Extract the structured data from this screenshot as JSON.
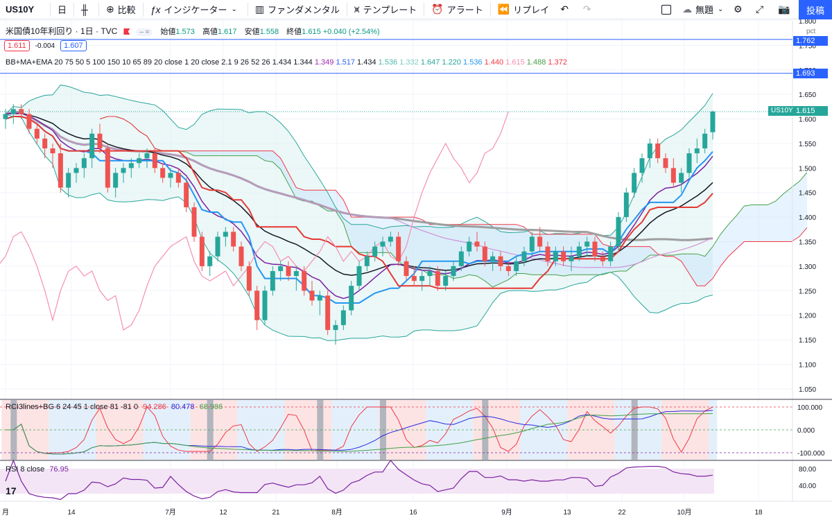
{
  "toolbar": {
    "symbol": "US10Y",
    "interval": "日",
    "compare": "比較",
    "indicators": "インジケーター",
    "fundamentals": "ファンダメンタル",
    "templates": "テンプレート",
    "alert": "アラート",
    "replay": "リプレイ",
    "layout_name": "無題",
    "publish": "投稿"
  },
  "legend": {
    "title": "米国債10年利回り · 1日 · TVC",
    "open_label": "始値",
    "open": "1.573",
    "high_label": "高値",
    "high": "1.617",
    "low_label": "安値",
    "low": "1.558",
    "close_label": "終値",
    "close": "1.615",
    "change": "+0.040 (+2.54%)",
    "bid": "1.611",
    "spread": "-0.004",
    "ask": "1.607",
    "indicator": "BB+MA+EMA 20 75 50 5 100 150 10 65 89 20 close 1 20 close 2.1 9 26 52 26",
    "values": [
      {
        "v": "1.434",
        "color": "#131722"
      },
      {
        "v": "1.344",
        "color": "#131722"
      },
      {
        "v": "1.349",
        "color": "#9c27b0"
      },
      {
        "v": "1.517",
        "color": "#2962ff"
      },
      {
        "v": "1.434",
        "color": "#131722"
      },
      {
        "v": "1.536",
        "color": "#4db6ac"
      },
      {
        "v": "1.332",
        "color": "#80cbc4"
      },
      {
        "v": "1.647",
        "color": "#26a69a"
      },
      {
        "v": "1.220",
        "color": "#26a69a"
      },
      {
        "v": "1.536",
        "color": "#2196f3"
      },
      {
        "v": "1.440",
        "color": "#f23645"
      },
      {
        "v": "1.615",
        "color": "#f48fb1"
      },
      {
        "v": "1.488",
        "color": "#43a047"
      },
      {
        "v": "1.372",
        "color": "#f23645"
      }
    ]
  },
  "rci_legend": {
    "label": "RCI3lines+BG 6 24 45 1 close 81 -81 0",
    "v1": "94.286",
    "v2": "80.478",
    "v3": "68.986"
  },
  "rsi_legend": {
    "label": "RSI 8 close",
    "value": "76.95"
  },
  "price_labels": {
    "high_line": "1.762",
    "low_line": "1.693",
    "last": "1.615",
    "symbol_tag": "US10Y",
    "unit": "pct"
  },
  "price_axis_ticks": [
    "1.800",
    "1.750",
    "1.700",
    "1.650",
    "1.600",
    "1.550",
    "1.500",
    "1.450",
    "1.400",
    "1.350",
    "1.300",
    "1.250",
    "1.200",
    "1.150",
    "1.100",
    "1.050"
  ],
  "rci_axis_ticks": [
    "100.000",
    "0.000",
    "-100.000"
  ],
  "rsi_axis_ticks": [
    "80.00",
    "40.00"
  ],
  "time_axis_ticks": [
    "月",
    "14",
    "7月",
    "12",
    "21",
    "8月",
    "16",
    "9月",
    "13",
    "22",
    "10月",
    "18"
  ],
  "colors": {
    "up": "#26a69a",
    "down": "#ef5350",
    "accent": "#2962ff"
  },
  "chart_data": {
    "type": "candlestick",
    "ylim": [
      1.03,
      1.8
    ],
    "grid": true,
    "candles": [
      [
        1.6,
        1.62,
        1.58,
        1.61
      ],
      [
        1.61,
        1.63,
        1.59,
        1.62
      ],
      [
        1.62,
        1.63,
        1.6,
        1.61
      ],
      [
        1.61,
        1.62,
        1.57,
        1.58
      ],
      [
        1.58,
        1.59,
        1.55,
        1.56
      ],
      [
        1.56,
        1.57,
        1.52,
        1.54
      ],
      [
        1.54,
        1.55,
        1.5,
        1.53
      ],
      [
        1.53,
        1.55,
        1.45,
        1.46
      ],
      [
        1.46,
        1.5,
        1.44,
        1.49
      ],
      [
        1.49,
        1.51,
        1.47,
        1.5
      ],
      [
        1.5,
        1.53,
        1.48,
        1.52
      ],
      [
        1.52,
        1.58,
        1.5,
        1.57
      ],
      [
        1.57,
        1.59,
        1.53,
        1.54
      ],
      [
        1.54,
        1.55,
        1.45,
        1.46
      ],
      [
        1.46,
        1.5,
        1.44,
        1.49
      ],
      [
        1.49,
        1.51,
        1.47,
        1.5
      ],
      [
        1.5,
        1.52,
        1.48,
        1.51
      ],
      [
        1.51,
        1.53,
        1.5,
        1.52
      ],
      [
        1.52,
        1.54,
        1.5,
        1.53
      ],
      [
        1.53,
        1.54,
        1.49,
        1.5
      ],
      [
        1.5,
        1.51,
        1.47,
        1.48
      ],
      [
        1.48,
        1.5,
        1.46,
        1.49
      ],
      [
        1.49,
        1.5,
        1.46,
        1.47
      ],
      [
        1.47,
        1.48,
        1.41,
        1.42
      ],
      [
        1.42,
        1.43,
        1.35,
        1.36
      ],
      [
        1.36,
        1.37,
        1.29,
        1.3
      ],
      [
        1.3,
        1.33,
        1.28,
        1.32
      ],
      [
        1.32,
        1.37,
        1.31,
        1.36
      ],
      [
        1.36,
        1.38,
        1.34,
        1.37
      ],
      [
        1.37,
        1.38,
        1.33,
        1.34
      ],
      [
        1.34,
        1.35,
        1.29,
        1.3
      ],
      [
        1.3,
        1.31,
        1.24,
        1.25
      ],
      [
        1.25,
        1.26,
        1.17,
        1.19
      ],
      [
        1.19,
        1.26,
        1.18,
        1.25
      ],
      [
        1.25,
        1.3,
        1.24,
        1.29
      ],
      [
        1.29,
        1.31,
        1.27,
        1.3
      ],
      [
        1.3,
        1.31,
        1.27,
        1.28
      ],
      [
        1.28,
        1.3,
        1.25,
        1.29
      ],
      [
        1.29,
        1.3,
        1.24,
        1.25
      ],
      [
        1.25,
        1.27,
        1.22,
        1.23
      ],
      [
        1.23,
        1.25,
        1.2,
        1.24
      ],
      [
        1.24,
        1.25,
        1.16,
        1.17
      ],
      [
        1.17,
        1.19,
        1.14,
        1.18
      ],
      [
        1.18,
        1.22,
        1.17,
        1.21
      ],
      [
        1.21,
        1.27,
        1.2,
        1.26
      ],
      [
        1.26,
        1.31,
        1.25,
        1.3
      ],
      [
        1.3,
        1.33,
        1.29,
        1.32
      ],
      [
        1.32,
        1.35,
        1.31,
        1.34
      ],
      [
        1.34,
        1.36,
        1.32,
        1.35
      ],
      [
        1.35,
        1.37,
        1.34,
        1.36
      ],
      [
        1.36,
        1.37,
        1.3,
        1.31
      ],
      [
        1.31,
        1.32,
        1.27,
        1.28
      ],
      [
        1.28,
        1.3,
        1.26,
        1.27
      ],
      [
        1.27,
        1.29,
        1.25,
        1.28
      ],
      [
        1.28,
        1.3,
        1.26,
        1.29
      ],
      [
        1.29,
        1.3,
        1.25,
        1.26
      ],
      [
        1.26,
        1.29,
        1.25,
        1.28
      ],
      [
        1.28,
        1.31,
        1.27,
        1.3
      ],
      [
        1.3,
        1.34,
        1.29,
        1.33
      ],
      [
        1.33,
        1.36,
        1.32,
        1.35
      ],
      [
        1.35,
        1.37,
        1.33,
        1.34
      ],
      [
        1.34,
        1.35,
        1.3,
        1.31
      ],
      [
        1.31,
        1.33,
        1.29,
        1.32
      ],
      [
        1.32,
        1.33,
        1.29,
        1.3
      ],
      [
        1.3,
        1.31,
        1.28,
        1.29
      ],
      [
        1.29,
        1.32,
        1.28,
        1.31
      ],
      [
        1.31,
        1.34,
        1.3,
        1.33
      ],
      [
        1.33,
        1.37,
        1.32,
        1.36
      ],
      [
        1.36,
        1.38,
        1.33,
        1.34
      ],
      [
        1.34,
        1.35,
        1.3,
        1.31
      ],
      [
        1.31,
        1.34,
        1.3,
        1.33
      ],
      [
        1.33,
        1.34,
        1.3,
        1.31
      ],
      [
        1.31,
        1.34,
        1.29,
        1.32
      ],
      [
        1.32,
        1.35,
        1.31,
        1.34
      ],
      [
        1.34,
        1.36,
        1.32,
        1.35
      ],
      [
        1.35,
        1.36,
        1.31,
        1.32
      ],
      [
        1.32,
        1.33,
        1.3,
        1.31
      ],
      [
        1.31,
        1.35,
        1.3,
        1.34
      ],
      [
        1.34,
        1.41,
        1.33,
        1.4
      ],
      [
        1.4,
        1.46,
        1.39,
        1.45
      ],
      [
        1.45,
        1.5,
        1.44,
        1.49
      ],
      [
        1.49,
        1.53,
        1.47,
        1.52
      ],
      [
        1.52,
        1.56,
        1.5,
        1.55
      ],
      [
        1.55,
        1.56,
        1.51,
        1.52
      ],
      [
        1.52,
        1.53,
        1.49,
        1.5
      ],
      [
        1.5,
        1.52,
        1.46,
        1.47
      ],
      [
        1.47,
        1.5,
        1.45,
        1.49
      ],
      [
        1.49,
        1.54,
        1.48,
        1.53
      ],
      [
        1.53,
        1.56,
        1.51,
        1.54
      ],
      [
        1.54,
        1.58,
        1.53,
        1.57
      ],
      [
        1.573,
        1.617,
        1.558,
        1.615
      ]
    ]
  }
}
